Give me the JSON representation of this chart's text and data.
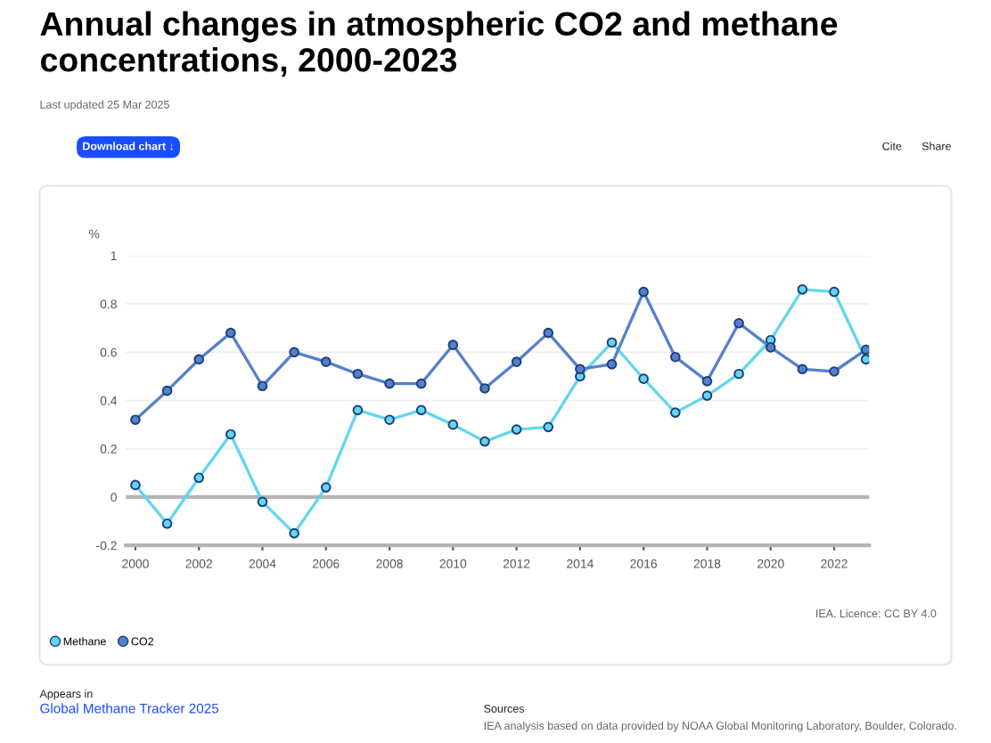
{
  "chart_data": {
    "type": "line",
    "title": "Annual changes in atmospheric CO2 and methane concentrations, 2000-2023",
    "subtitle": "Last updated 25 Mar 2025",
    "ylabel": "%",
    "x": [
      2000,
      2001,
      2002,
      2003,
      2004,
      2005,
      2006,
      2007,
      2008,
      2009,
      2010,
      2011,
      2012,
      2013,
      2014,
      2015,
      2016,
      2017,
      2018,
      2019,
      2020,
      2021,
      2022,
      2023
    ],
    "series": [
      {
        "name": "Methane",
        "color": "#62d6f2",
        "values": [
          0.05,
          -0.11,
          0.08,
          0.26,
          -0.02,
          -0.15,
          0.04,
          0.36,
          0.32,
          0.36,
          0.3,
          0.23,
          0.28,
          0.29,
          0.5,
          0.64,
          0.49,
          0.35,
          0.42,
          0.51,
          0.65,
          0.86,
          0.85,
          0.57
        ]
      },
      {
        "name": "CO2",
        "color": "#5580cc",
        "values": [
          0.32,
          0.44,
          0.57,
          0.68,
          0.46,
          0.6,
          0.56,
          0.51,
          0.47,
          0.47,
          0.63,
          0.45,
          0.56,
          0.68,
          0.53,
          0.55,
          0.85,
          0.58,
          0.48,
          0.72,
          0.62,
          0.53,
          0.52,
          0.61
        ]
      }
    ],
    "xlim": [
      1999.7,
      2023.1
    ],
    "xticks": [
      2000,
      2002,
      2004,
      2006,
      2008,
      2010,
      2012,
      2014,
      2016,
      2018,
      2020,
      2022
    ],
    "ylim": [
      -0.2,
      1
    ],
    "yticks": [
      -0.2,
      0,
      0.2,
      0.4,
      0.6,
      0.8,
      1
    ],
    "ref_lines": [
      {
        "axis": "y",
        "value": 0,
        "color": "#b4b4b4"
      }
    ],
    "grid": "y",
    "legend": "bottom left",
    "marker": "circle",
    "line_style": "solid",
    "annotations": [
      "Download chart ↓",
      "Cite",
      "Share",
      "IEA. Licence: CC BY 4.0",
      "Appears in",
      "Global Methane Tracker 2025",
      "Sources",
      "IEA analysis based on data provided by NOAA Global Monitoring Laboratory, Boulder, Colorado."
    ]
  }
}
